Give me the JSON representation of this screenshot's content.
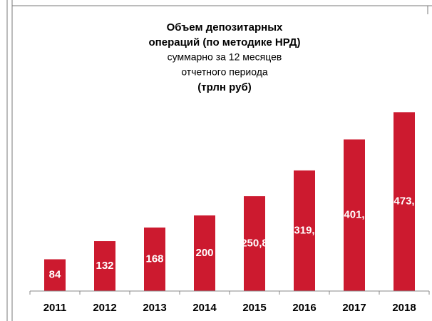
{
  "chart_data": {
    "type": "bar",
    "title": [
      "Объем депозитарных",
      "операций (по методике НРД)"
    ],
    "subtitle": [
      "суммарно за 12 месяцев",
      "отчетного периода"
    ],
    "units": "(трлн руб)",
    "categories": [
      "2011",
      "2012",
      "2013",
      "2014",
      "2015",
      "2016",
      "2017",
      "2018"
    ],
    "values": [
      84,
      132,
      168,
      200,
      250.8,
      319,
      401,
      473
    ],
    "value_labels": [
      "84",
      "132",
      "168",
      "200",
      "250,8",
      "319,",
      "401,",
      "473,"
    ],
    "color": "#cc1a2f",
    "ylim": [
      0,
      500
    ]
  }
}
